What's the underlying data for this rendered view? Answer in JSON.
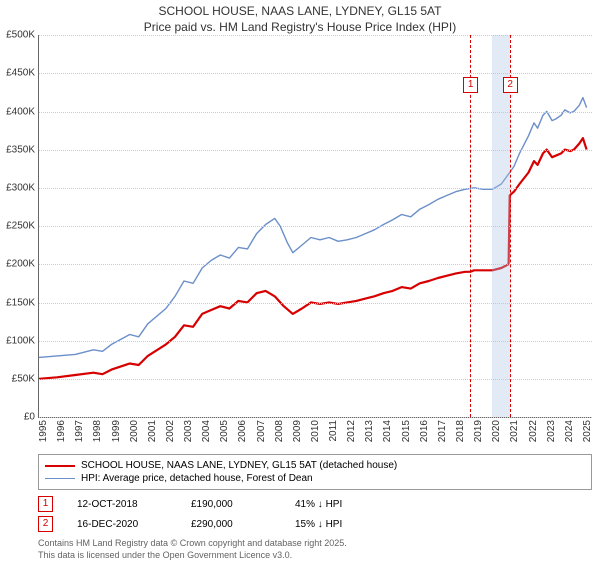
{
  "title_line1": "SCHOOL HOUSE, NAAS LANE, LYDNEY, GL15 5AT",
  "title_line2": "Price paid vs. HM Land Registry's House Price Index (HPI)",
  "chart": {
    "type": "line",
    "background_color": "#ffffff",
    "grid_color": "#cccccc",
    "axis_color": "#666666",
    "label_fontsize": 10,
    "title_fontsize": 12,
    "xlim": [
      1995,
      2025.5
    ],
    "ylim": [
      0,
      500000
    ],
    "y_ticks": [
      0,
      50000,
      100000,
      150000,
      200000,
      250000,
      300000,
      350000,
      400000,
      450000,
      500000
    ],
    "y_tick_labels": [
      "£0",
      "£50K",
      "£100K",
      "£150K",
      "£200K",
      "£250K",
      "£300K",
      "£350K",
      "£400K",
      "£450K",
      "£500K"
    ],
    "x_ticks": [
      1995,
      1996,
      1997,
      1998,
      1999,
      2000,
      2001,
      2002,
      2003,
      2004,
      2005,
      2006,
      2007,
      2008,
      2009,
      2010,
      2011,
      2012,
      2013,
      2014,
      2015,
      2016,
      2017,
      2018,
      2019,
      2020,
      2021,
      2022,
      2023,
      2024,
      2025
    ],
    "shade": {
      "from": 2020.0,
      "to": 2020.96,
      "color": "rgba(173,196,230,0.35)"
    },
    "markers": [
      {
        "id": "1",
        "x": 2018.78,
        "y_label_pos": 435000,
        "color": "#d60000"
      },
      {
        "id": "2",
        "x": 2020.96,
        "y_label_pos": 435000,
        "color": "#d60000"
      }
    ],
    "series": [
      {
        "name": "price_paid",
        "label": "SCHOOL HOUSE, NAAS LANE, LYDNEY, GL15 5AT (detached house)",
        "color": "#d60000",
        "line_width": 2.2,
        "data": [
          [
            1995,
            50000
          ],
          [
            1996,
            52000
          ],
          [
            1997,
            55000
          ],
          [
            1998,
            58000
          ],
          [
            1998.5,
            56000
          ],
          [
            1999,
            62000
          ],
          [
            2000,
            70000
          ],
          [
            2000.5,
            68000
          ],
          [
            2001,
            80000
          ],
          [
            2002,
            95000
          ],
          [
            2002.5,
            105000
          ],
          [
            2003,
            120000
          ],
          [
            2003.5,
            118000
          ],
          [
            2004,
            135000
          ],
          [
            2004.5,
            140000
          ],
          [
            2005,
            145000
          ],
          [
            2005.5,
            142000
          ],
          [
            2006,
            152000
          ],
          [
            2006.5,
            150000
          ],
          [
            2007,
            162000
          ],
          [
            2007.5,
            165000
          ],
          [
            2008,
            158000
          ],
          [
            2008.5,
            145000
          ],
          [
            2009,
            135000
          ],
          [
            2009.5,
            142000
          ],
          [
            2010,
            150000
          ],
          [
            2010.5,
            148000
          ],
          [
            2011,
            150000
          ],
          [
            2011.5,
            148000
          ],
          [
            2012,
            150000
          ],
          [
            2012.5,
            152000
          ],
          [
            2013,
            155000
          ],
          [
            2013.5,
            158000
          ],
          [
            2014,
            162000
          ],
          [
            2014.5,
            165000
          ],
          [
            2015,
            170000
          ],
          [
            2015.5,
            168000
          ],
          [
            2016,
            175000
          ],
          [
            2016.5,
            178000
          ],
          [
            2017,
            182000
          ],
          [
            2017.5,
            185000
          ],
          [
            2018,
            188000
          ],
          [
            2018.5,
            190000
          ],
          [
            2018.78,
            190000
          ],
          [
            2019,
            192000
          ],
          [
            2019.5,
            192000
          ],
          [
            2020,
            192000
          ],
          [
            2020.5,
            195000
          ],
          [
            2020.9,
            200000
          ],
          [
            2020.96,
            290000
          ],
          [
            2021.2,
            295000
          ],
          [
            2021.5,
            305000
          ],
          [
            2022,
            320000
          ],
          [
            2022.3,
            335000
          ],
          [
            2022.5,
            330000
          ],
          [
            2022.8,
            345000
          ],
          [
            2023,
            350000
          ],
          [
            2023.3,
            340000
          ],
          [
            2023.5,
            342000
          ],
          [
            2023.8,
            345000
          ],
          [
            2024,
            350000
          ],
          [
            2024.3,
            348000
          ],
          [
            2024.5,
            350000
          ],
          [
            2024.8,
            358000
          ],
          [
            2025,
            365000
          ],
          [
            2025.2,
            350000
          ]
        ]
      },
      {
        "name": "hpi",
        "label": "HPI: Average price, detached house, Forest of Dean",
        "color": "#6b8fc9",
        "line_width": 1.4,
        "data": [
          [
            1995,
            78000
          ],
          [
            1996,
            80000
          ],
          [
            1997,
            82000
          ],
          [
            1998,
            88000
          ],
          [
            1998.5,
            86000
          ],
          [
            1999,
            95000
          ],
          [
            2000,
            108000
          ],
          [
            2000.5,
            105000
          ],
          [
            2001,
            122000
          ],
          [
            2002,
            142000
          ],
          [
            2002.5,
            158000
          ],
          [
            2003,
            178000
          ],
          [
            2003.5,
            175000
          ],
          [
            2004,
            195000
          ],
          [
            2004.5,
            205000
          ],
          [
            2005,
            212000
          ],
          [
            2005.5,
            208000
          ],
          [
            2006,
            222000
          ],
          [
            2006.5,
            220000
          ],
          [
            2007,
            240000
          ],
          [
            2007.5,
            252000
          ],
          [
            2008,
            260000
          ],
          [
            2008.3,
            250000
          ],
          [
            2008.7,
            228000
          ],
          [
            2009,
            215000
          ],
          [
            2009.5,
            225000
          ],
          [
            2010,
            235000
          ],
          [
            2010.5,
            232000
          ],
          [
            2011,
            235000
          ],
          [
            2011.5,
            230000
          ],
          [
            2012,
            232000
          ],
          [
            2012.5,
            235000
          ],
          [
            2013,
            240000
          ],
          [
            2013.5,
            245000
          ],
          [
            2014,
            252000
          ],
          [
            2014.5,
            258000
          ],
          [
            2015,
            265000
          ],
          [
            2015.5,
            262000
          ],
          [
            2016,
            272000
          ],
          [
            2016.5,
            278000
          ],
          [
            2017,
            285000
          ],
          [
            2017.5,
            290000
          ],
          [
            2018,
            295000
          ],
          [
            2018.5,
            298000
          ],
          [
            2019,
            300000
          ],
          [
            2019.5,
            298000
          ],
          [
            2020,
            298000
          ],
          [
            2020.5,
            305000
          ],
          [
            2020.96,
            320000
          ],
          [
            2021.2,
            328000
          ],
          [
            2021.5,
            345000
          ],
          [
            2022,
            368000
          ],
          [
            2022.3,
            385000
          ],
          [
            2022.5,
            378000
          ],
          [
            2022.8,
            395000
          ],
          [
            2023,
            400000
          ],
          [
            2023.3,
            388000
          ],
          [
            2023.5,
            390000
          ],
          [
            2023.8,
            395000
          ],
          [
            2024,
            402000
          ],
          [
            2024.3,
            398000
          ],
          [
            2024.5,
            400000
          ],
          [
            2024.8,
            408000
          ],
          [
            2025,
            418000
          ],
          [
            2025.2,
            405000
          ]
        ]
      }
    ]
  },
  "legend": {
    "items": [
      {
        "color": "#d60000",
        "width": 2.2,
        "label": "SCHOOL HOUSE, NAAS LANE, LYDNEY, GL15 5AT (detached house)"
      },
      {
        "color": "#6b8fc9",
        "width": 1.4,
        "label": "HPI: Average price, detached house, Forest of Dean"
      }
    ]
  },
  "sales": [
    {
      "id": "1",
      "box_color": "#d60000",
      "date": "12-OCT-2018",
      "price": "£190,000",
      "vs_hpi": "41% ↓ HPI"
    },
    {
      "id": "2",
      "box_color": "#d60000",
      "date": "16-DEC-2020",
      "price": "£290,000",
      "vs_hpi": "15% ↓ HPI"
    }
  ],
  "attribution": {
    "line1": "Contains HM Land Registry data © Crown copyright and database right 2025.",
    "line2": "This data is licensed under the Open Government Licence v3.0."
  }
}
